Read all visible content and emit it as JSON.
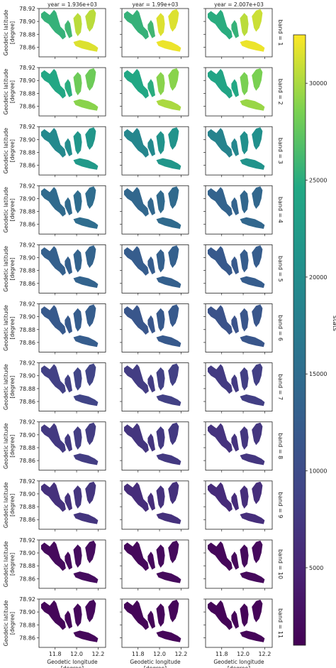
{
  "chart_data": {
    "type": "heatmap",
    "description_kind": "faceted map grid (rows = band, columns = year), colored by stats",
    "col_facet_labels": [
      "year = 1.936e+03",
      "year = 1.99e+03",
      "year = 2.007e+03"
    ],
    "row_facet_labels": [
      "band = 1",
      "band = 2",
      "band = 3",
      "band = 4",
      "band = 5",
      "band = 6",
      "band = 7",
      "band = 8",
      "band = 9",
      "band = 10",
      "band = 11"
    ],
    "ylabel": "Geodetic latitude\n[degree]",
    "xlabel": "Geodetic longitude\n[degree]",
    "y_ticks": [
      78.92,
      78.9,
      78.88,
      78.86
    ],
    "y_tick_labels": [
      "78.92",
      "78.90",
      "78.88",
      "78.86"
    ],
    "ylim": [
      78.845,
      78.92
    ],
    "x_ticks": [
      11.8,
      12.0,
      12.2
    ],
    "x_tick_labels": [
      "11.8",
      "12.0",
      "12.2"
    ],
    "xlim": [
      11.65,
      12.27
    ],
    "colorbar": {
      "label": "stats",
      "colormap": "viridis",
      "range": [
        1000,
        32500
      ],
      "ticks": [
        5000,
        10000,
        15000,
        20000,
        25000,
        30000
      ],
      "tick_labels": [
        "5000",
        "10000",
        "15000",
        "20000",
        "25000",
        "30000"
      ]
    },
    "series": [
      {
        "band": 1,
        "values": [
          [
            25500,
            26000,
            30500,
            30500,
            31500
          ],
          [
            25500,
            26000,
            31500,
            31500,
            32000
          ],
          [
            25000,
            25500,
            30500,
            31000,
            32000
          ]
        ]
      },
      {
        "band": 2,
        "values": [
          [
            24500,
            25000,
            28000,
            28000,
            29000
          ],
          [
            24500,
            25000,
            29000,
            29000,
            30000
          ],
          [
            24000,
            24500,
            28500,
            28500,
            29500
          ]
        ]
      },
      {
        "band": 3,
        "values": [
          [
            19500,
            20000,
            21500,
            21500,
            22000
          ],
          [
            19000,
            19500,
            21000,
            21000,
            21500
          ],
          [
            18500,
            19000,
            20500,
            20500,
            21000
          ]
        ]
      },
      {
        "band": 4,
        "values": [
          [
            14500,
            14500,
            15000,
            15000,
            15000
          ],
          [
            14000,
            14000,
            14500,
            14500,
            14500
          ],
          [
            13500,
            13500,
            14000,
            14000,
            14000
          ]
        ]
      },
      {
        "band": 5,
        "values": [
          [
            13000,
            13000,
            13500,
            13500,
            13500
          ],
          [
            12500,
            12500,
            13000,
            13000,
            13000
          ],
          [
            12000,
            12000,
            12500,
            12500,
            12500
          ]
        ]
      },
      {
        "band": 6,
        "values": [
          [
            12000,
            12000,
            12500,
            12500,
            12500
          ],
          [
            11500,
            11500,
            12000,
            12000,
            12000
          ],
          [
            11000,
            11000,
            11500,
            11500,
            11500
          ]
        ]
      },
      {
        "band": 7,
        "values": [
          [
            8500,
            8500,
            9000,
            9000,
            9000
          ],
          [
            8000,
            8000,
            8500,
            8500,
            8500
          ],
          [
            7800,
            7800,
            8200,
            8200,
            8200
          ]
        ]
      },
      {
        "band": 8,
        "values": [
          [
            7500,
            7500,
            8000,
            8000,
            8000
          ],
          [
            7000,
            7000,
            7500,
            7500,
            7500
          ],
          [
            6800,
            6800,
            7200,
            7200,
            7200
          ]
        ]
      },
      {
        "band": 9,
        "values": [
          [
            6500,
            6500,
            7000,
            7000,
            7000
          ],
          [
            6000,
            6000,
            6500,
            6500,
            6500
          ],
          [
            5800,
            5800,
            6200,
            6200,
            6200
          ]
        ]
      },
      {
        "band": 10,
        "values": [
          [
            2000,
            2000,
            2200,
            2200,
            2200
          ],
          [
            1800,
            1800,
            2000,
            2000,
            2000
          ],
          [
            1700,
            1700,
            1900,
            1900,
            1900
          ]
        ]
      },
      {
        "band": 11,
        "values": [
          [
            1600,
            1600,
            1800,
            1800,
            1800
          ],
          [
            1400,
            1400,
            1600,
            1600,
            1600
          ],
          [
            1300,
            1300,
            1500,
            1500,
            1500
          ]
        ]
      }
    ]
  }
}
